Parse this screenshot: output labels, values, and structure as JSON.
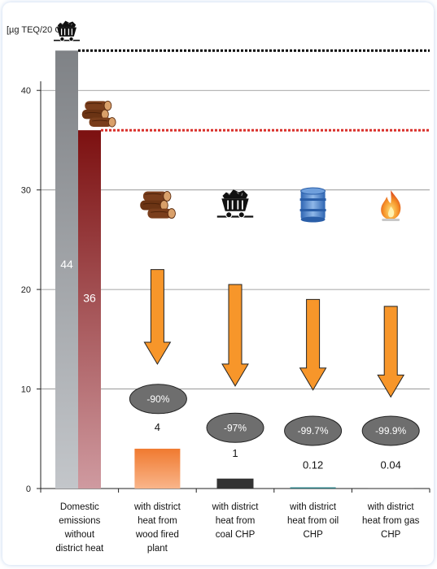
{
  "chart_data": {
    "type": "bar",
    "ylabel": "[µg TEQ/20 GJ]",
    "ylim": [
      0,
      45
    ],
    "yticks": [
      0,
      10,
      20,
      30,
      40
    ],
    "grid": true,
    "categories": [
      [
        "Domestic",
        "emissions",
        "without",
        "district heat"
      ],
      [
        "with district",
        "heat from",
        "wood fired",
        "plant"
      ],
      [
        "with district",
        "heat from",
        "coal CHP"
      ],
      [
        "with district",
        "heat from oil",
        "CHP"
      ],
      [
        "with district",
        "heat from gas",
        "CHP"
      ]
    ],
    "domestic_bars": [
      {
        "fuel": "coal",
        "value": 44,
        "label": "44",
        "color": "#8f9296"
      },
      {
        "fuel": "wood",
        "value": 36,
        "label": "36",
        "color": "#8e1a1a"
      }
    ],
    "district_bars": [
      {
        "fuel": "wood",
        "value": 4,
        "label": "4",
        "reduction": "-90%",
        "color": "#f28a3c"
      },
      {
        "fuel": "coal",
        "value": 1,
        "label": "1",
        "reduction": "-97%",
        "color": "#333333"
      },
      {
        "fuel": "oil",
        "value": 0.12,
        "label": "0.12",
        "reduction": "-99.7%",
        "color": "#2a7d84"
      },
      {
        "fuel": "gas",
        "value": 0.04,
        "label": "0.04",
        "reduction": "-99.9%",
        "color": "#999999"
      }
    ],
    "reference_lines": [
      {
        "value": 44,
        "color": "#000000"
      },
      {
        "value": 36,
        "color": "#d9302b"
      }
    ],
    "arrow_color": "#f7962a",
    "badge_color": "#6e6e6e",
    "icons": [
      "coal-cart-icon",
      "wood-logs-icon",
      "oil-barrel-icon",
      "gas-flame-icon"
    ]
  }
}
